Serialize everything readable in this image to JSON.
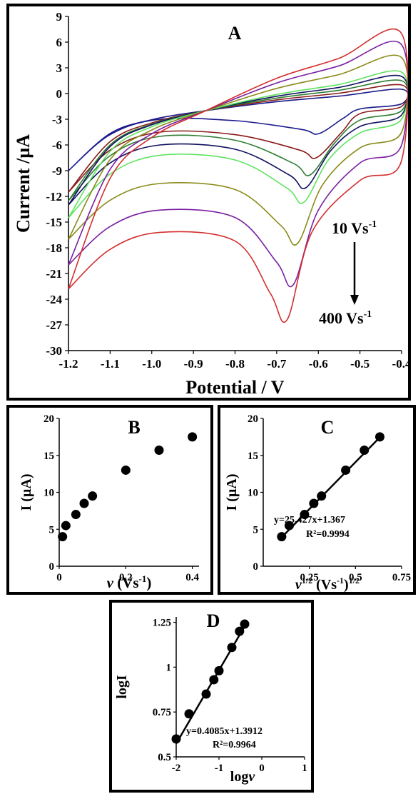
{
  "chart_data": [
    {
      "panel": "A",
      "type": "line",
      "title": "A",
      "xlabel": "Potential / V",
      "ylabel": "Current /µA",
      "xlim": [
        -1.2,
        -0.4
      ],
      "ylim": [
        -30,
        9
      ],
      "xticks": [
        -1.2,
        -1.1,
        -1.0,
        -0.9,
        -0.8,
        -0.7,
        -0.6,
        -0.5,
        -0.4
      ],
      "xtick_labels": [
        "-1.2",
        "-1.1",
        "-1.0",
        "-0.9",
        "-0.8",
        "-0.7",
        "-0.6",
        "-0.5",
        "-0.4"
      ],
      "yticks": [
        9,
        6,
        3,
        0,
        -3,
        -6,
        -9,
        -12,
        -15,
        -18,
        -21,
        -24,
        -27,
        -30
      ],
      "ytick_labels": [
        "9",
        "6",
        "3",
        "0",
        "-3",
        "-6",
        "-9",
        "-12",
        "-15",
        "-18",
        "-21",
        "-24",
        "-27",
        "-30"
      ],
      "annotation_top": "10 Vs",
      "annotation_top_sup": "-1",
      "annotation_bottom": "400 Vs",
      "annotation_bottom_sup": "-1",
      "grid": false,
      "curves": [
        {
          "color": "#1a1a8c",
          "start": -9.0,
          "end_top": 0.5,
          "pit": -4.7,
          "peak_x": -0.6,
          "valley": -3.0,
          "end_bottom": -1.2
        },
        {
          "color": "#8b1a1a",
          "start": -11.5,
          "end_top": 1.0,
          "pit": -7.5,
          "peak_x": -0.605,
          "valley": -4.5,
          "end_bottom": -1.5
        },
        {
          "color": "#2e7d32",
          "start": -12.5,
          "end_top": 1.5,
          "pit": -9.5,
          "peak_x": -0.62,
          "valley": -5.0,
          "end_bottom": -2.0
        },
        {
          "color": "#101060",
          "start": -13.0,
          "end_top": 2.0,
          "pit": -11.0,
          "peak_x": -0.63,
          "valley": -6.0,
          "end_bottom": -2.5
        },
        {
          "color": "#5ee35e",
          "start": -14.5,
          "end_top": 2.5,
          "pit": -12.7,
          "peak_x": -0.635,
          "valley": -7.2,
          "end_bottom": -3.0
        },
        {
          "color": "#8a8a1a",
          "start": -17.0,
          "end_top": 4.2,
          "pit": -17.5,
          "peak_x": -0.65,
          "valley": -10.5,
          "end_bottom": -4.5
        },
        {
          "color": "#7a1fa2",
          "start": -20.0,
          "end_top": 5.7,
          "pit": -22.3,
          "peak_x": -0.66,
          "valley": -13.6,
          "end_bottom": -6.0
        },
        {
          "color": "#d32f2f",
          "start": -22.8,
          "end_top": 7.0,
          "pit": -26.4,
          "peak_x": -0.675,
          "valley": -16.2,
          "end_bottom": -7.8
        }
      ]
    },
    {
      "panel": "B",
      "type": "scatter",
      "title": "B",
      "xlabel": "v (Vs",
      "xlabel_sup": "-1",
      "xlabel_end": ")",
      "ylabel": "I (µA)",
      "xlim": [
        0,
        0.42
      ],
      "ylim": [
        0,
        20
      ],
      "xticks": [
        0,
        0.2,
        0.4
      ],
      "xtick_labels": [
        "0",
        "0.2",
        "0.4"
      ],
      "yticks": [
        0,
        5,
        10,
        15,
        20
      ],
      "ytick_labels": [
        "0",
        "5",
        "10",
        "15",
        "20"
      ],
      "x": [
        0.01,
        0.02,
        0.05,
        0.075,
        0.1,
        0.2,
        0.3,
        0.4
      ],
      "y": [
        4.0,
        5.5,
        7.0,
        8.5,
        9.5,
        13.0,
        15.7,
        17.5
      ]
    },
    {
      "panel": "C",
      "type": "scatter",
      "title": "C",
      "xlabel": "v",
      "xlabel_sup1": "1/2",
      "xlabel_mid": " (Vs",
      "xlabel_sup2": "-1",
      "xlabel_end": ")",
      "xlabel_sup3": "1/2",
      "ylabel": "I (µA)",
      "xlim": [
        0,
        0.75
      ],
      "ylim": [
        0,
        20
      ],
      "xticks": [
        0.25,
        0.5,
        0.75
      ],
      "xtick_labels": [
        "0.25",
        "0.5",
        "0.75"
      ],
      "yticks": [
        0,
        5,
        10,
        15,
        20
      ],
      "ytick_labels": [
        "0",
        "5",
        "10",
        "15",
        "20"
      ],
      "x": [
        0.1,
        0.141,
        0.224,
        0.274,
        0.316,
        0.447,
        0.548,
        0.632
      ],
      "y": [
        4.0,
        5.5,
        7.0,
        8.5,
        9.5,
        13.0,
        15.7,
        17.5
      ],
      "fit_x": [
        0.1,
        0.632
      ],
      "fit_y": [
        3.91,
        17.44
      ],
      "equation": "y=25.427x+1.367",
      "r2": "R²=0.9994"
    },
    {
      "panel": "D",
      "type": "scatter",
      "title": "D",
      "xlabel": "logv",
      "ylabel": "logI",
      "xlim": [
        -2,
        1
      ],
      "ylim": [
        0.5,
        1.28
      ],
      "xticks": [
        -2,
        -1,
        0,
        1
      ],
      "xtick_labels": [
        "-2",
        "-1",
        "0",
        "1"
      ],
      "yticks": [
        0.5,
        0.75,
        1,
        1.25
      ],
      "ytick_labels": [
        "0.5",
        "0.75",
        "1",
        "1.25"
      ],
      "x": [
        -2.0,
        -1.7,
        -1.3,
        -1.12,
        -1.0,
        -0.7,
        -0.52,
        -0.4
      ],
      "y": [
        0.6,
        0.74,
        0.85,
        0.93,
        0.98,
        1.11,
        1.2,
        1.24
      ],
      "fit_x": [
        -2.0,
        -0.4
      ],
      "fit_y": [
        0.574,
        1.228
      ],
      "equation": "y=0.4085x+1.3912",
      "r2": "R²=0.9964"
    }
  ]
}
